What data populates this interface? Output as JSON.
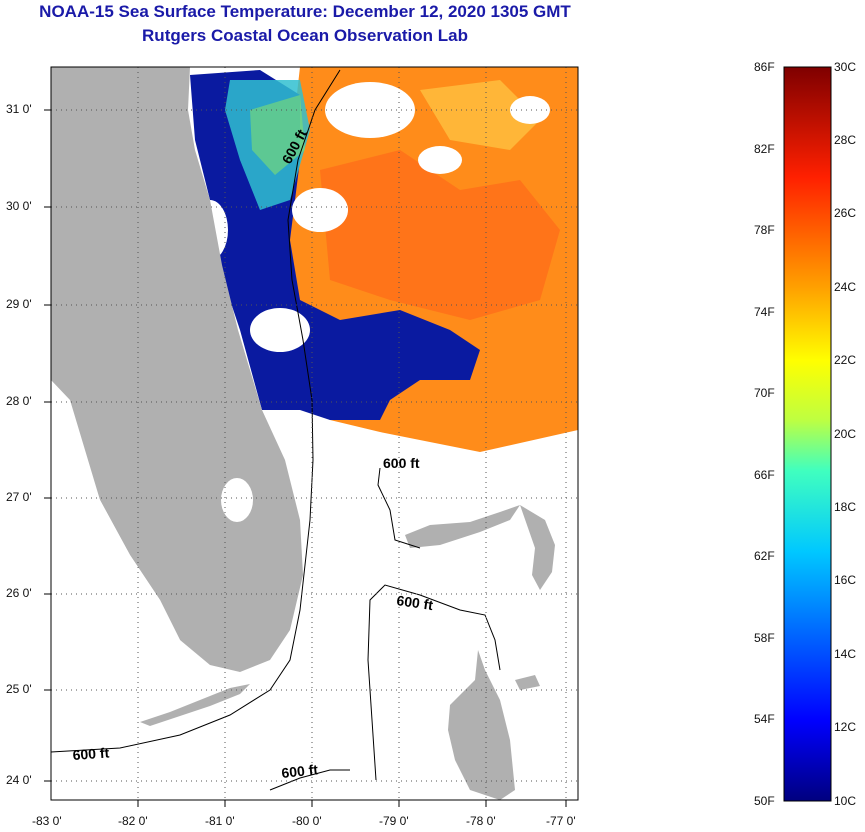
{
  "title": {
    "line1": "NOAA-15 Sea Surface Temperature:  December 12, 2020 1305 GMT",
    "line2": "Rutgers Coastal Ocean Observation Lab"
  },
  "map": {
    "lat_labels": [
      "31 0'",
      "30 0'",
      "29 0'",
      "28 0'",
      "27 0'",
      "26 0'",
      "25 0'",
      "24 0'"
    ],
    "lon_labels": [
      "-83 0'",
      "-82 0'",
      "-81 0'",
      "-80 0'",
      "-79 0'",
      "-78 0'",
      "-77 0'"
    ],
    "contour_labels": [
      "600 ft",
      "600 ft",
      "600 ft",
      "600 ft",
      "600 ft"
    ],
    "land_color": "#b0b0b0",
    "cloud_color": "#ffffff"
  },
  "colorbar": {
    "fahrenheit_labels": [
      "86F",
      "82F",
      "78F",
      "74F",
      "70F",
      "66F",
      "62F",
      "58F",
      "54F",
      "50F"
    ],
    "celsius_labels": [
      "30C",
      "28C",
      "26C",
      "24C",
      "22C",
      "20C",
      "18C",
      "16C",
      "14C",
      "12C",
      "10C"
    ],
    "gradient": [
      "#00007f",
      "#0000ff",
      "#007fff",
      "#00ffff",
      "#7fff7f",
      "#ffff00",
      "#ff7f00",
      "#ff0000",
      "#7f0000"
    ]
  }
}
